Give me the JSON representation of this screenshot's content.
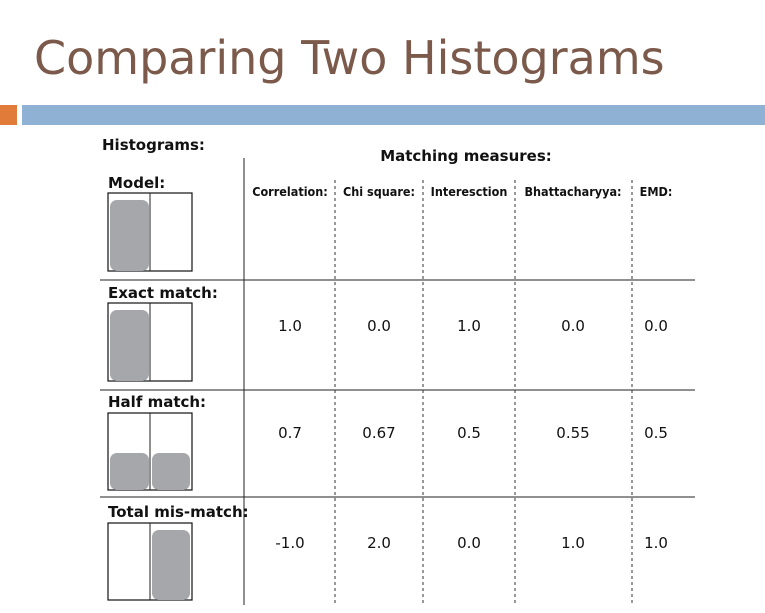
{
  "header": {
    "title": "Comparing Two Histograms"
  },
  "table": {
    "histograms_heading": "Histograms:",
    "measures_heading": "Matching measures:",
    "columns": [
      "Correlation:",
      "Chi square:",
      "Interesction",
      "Bhattacharyya:",
      "EMD:"
    ],
    "rows": [
      {
        "label": "Model:",
        "values": []
      },
      {
        "label": "Exact match:",
        "values": [
          "1.0",
          "0.0",
          "1.0",
          "0.0",
          "0.0"
        ]
      },
      {
        "label": "Half match:",
        "values": [
          "0.7",
          "0.67",
          "0.5",
          "0.55",
          "0.5"
        ]
      },
      {
        "label": "Total mis-match:",
        "values": [
          "-1.0",
          "2.0",
          "0.0",
          "1.0",
          "1.0"
        ]
      }
    ]
  }
}
